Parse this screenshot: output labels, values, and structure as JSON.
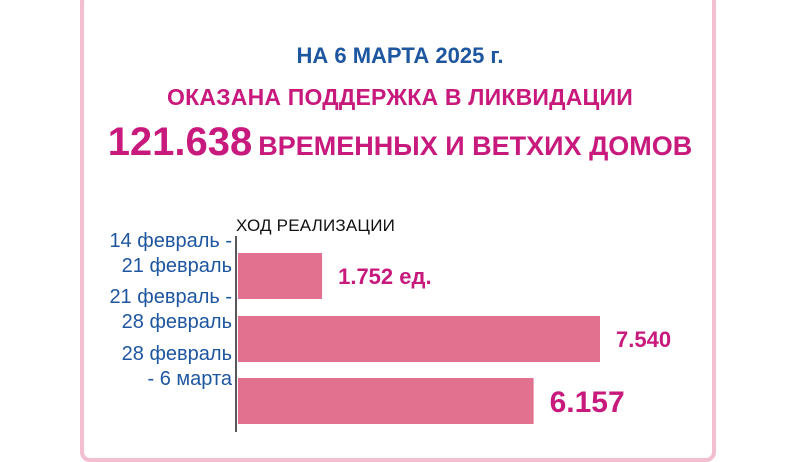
{
  "header": {
    "date_line": "НА 6 МАРТА 2025 г.",
    "line2": "ОКАЗАНА ПОДДЕРЖКА В ЛИКВИДАЦИИ",
    "big_number": "121.638",
    "line3_rest": "ВРЕМЕННЫХ И ВЕТХИХ ДОМОВ"
  },
  "chart_data": {
    "type": "bar",
    "orientation": "horizontal",
    "title": "ХОД РЕАЛИЗАЦИИ",
    "categories": [
      "14 февраль - 21 февраль",
      "21 февраль - 28 февраль",
      "28 февраль - 6 марта"
    ],
    "category_lines": [
      [
        "14 февраль -",
        "21 февраль"
      ],
      [
        "21 февраль -",
        "28 февраль"
      ],
      [
        "28 февраль",
        "- 6 марта"
      ]
    ],
    "values": [
      1752,
      7540,
      6157
    ],
    "value_labels": [
      "1.752 ед.",
      "7.540",
      "6.157"
    ],
    "xlim": [
      0,
      7540
    ],
    "grid": false,
    "colors": {
      "bar": "#e1718f",
      "value_label": "#c8197d",
      "category_label": "#1e56a0",
      "axis": "#222222"
    }
  },
  "colors": {
    "frame": "#f3bfd0",
    "blue": "#1e56a0",
    "magenta": "#c8197d"
  }
}
